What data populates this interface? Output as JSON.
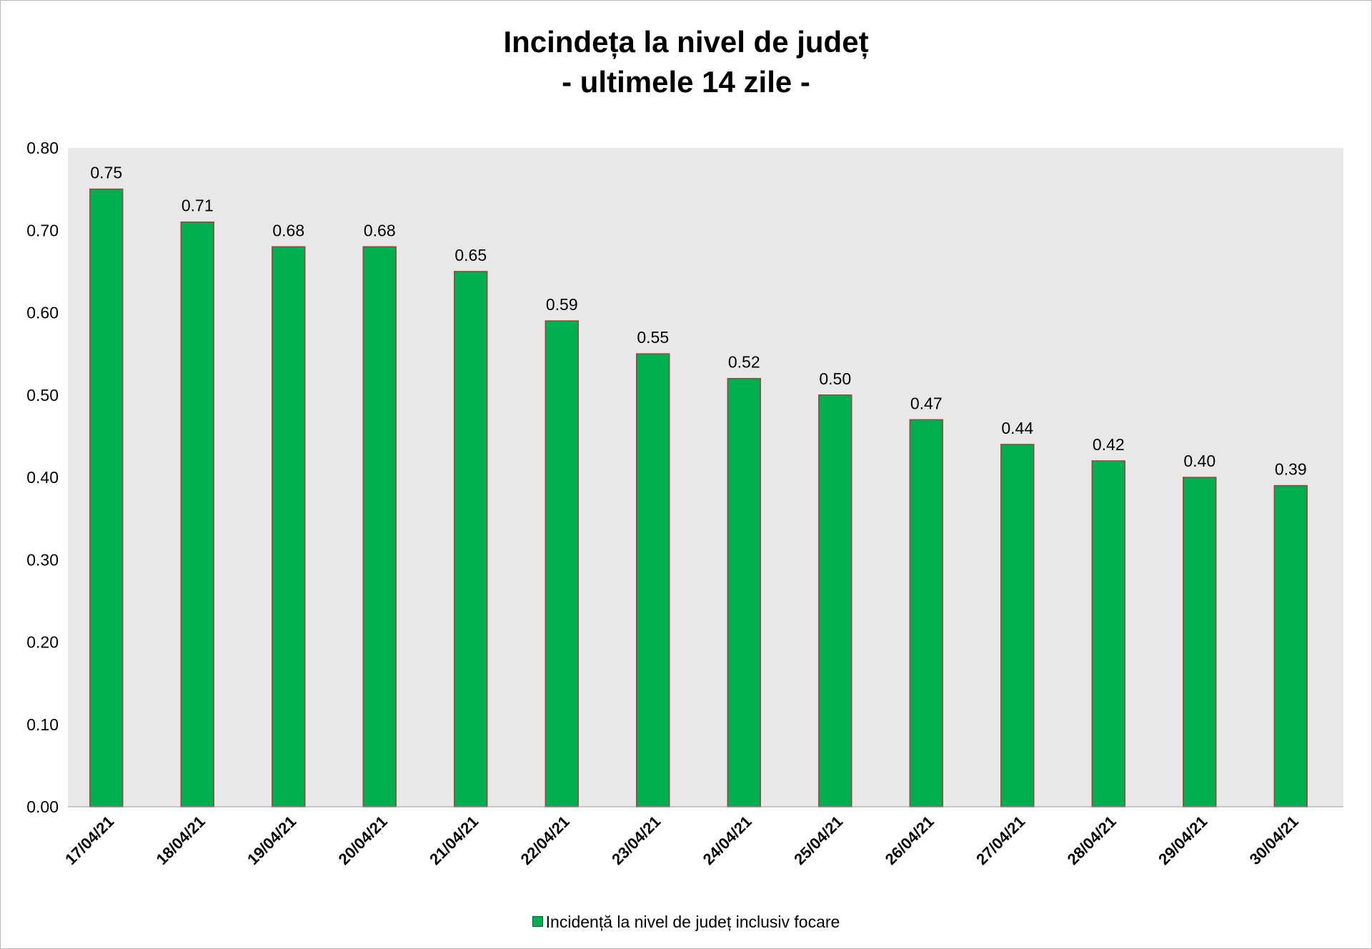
{
  "chart_data": {
    "type": "bar",
    "title": "Incindeța la nivel de județ",
    "subtitle": "- ultimele 14 zile -",
    "categories": [
      "17/04/21",
      "18/04/21",
      "19/04/21",
      "20/04/21",
      "21/04/21",
      "22/04/21",
      "23/04/21",
      "24/04/21",
      "25/04/21",
      "26/04/21",
      "27/04/21",
      "28/04/21",
      "29/04/21",
      "30/04/21"
    ],
    "series": [
      {
        "name": "Incidență la nivel de județ inclusiv focare",
        "values": [
          0.75,
          0.71,
          0.68,
          0.68,
          0.65,
          0.59,
          0.55,
          0.52,
          0.5,
          0.47,
          0.44,
          0.42,
          0.4,
          0.39
        ],
        "data_labels": [
          "0.75",
          "0.71",
          "0.68",
          "0.68",
          "0.65",
          "0.59",
          "0.55",
          "0.52",
          "0.50",
          "0.47",
          "0.44",
          "0.42",
          "0.40",
          "0.39"
        ],
        "color": "#00b050"
      }
    ],
    "ylim": [
      0,
      0.8
    ],
    "yticks": [
      "0.00",
      "0.10",
      "0.20",
      "0.30",
      "0.40",
      "0.50",
      "0.60",
      "0.70",
      "0.80"
    ],
    "xlabel": "",
    "ylabel": "",
    "grid": false,
    "legend": "bottom",
    "plot_background": "#e8e8e8",
    "bar_border_color": "#a04040"
  }
}
